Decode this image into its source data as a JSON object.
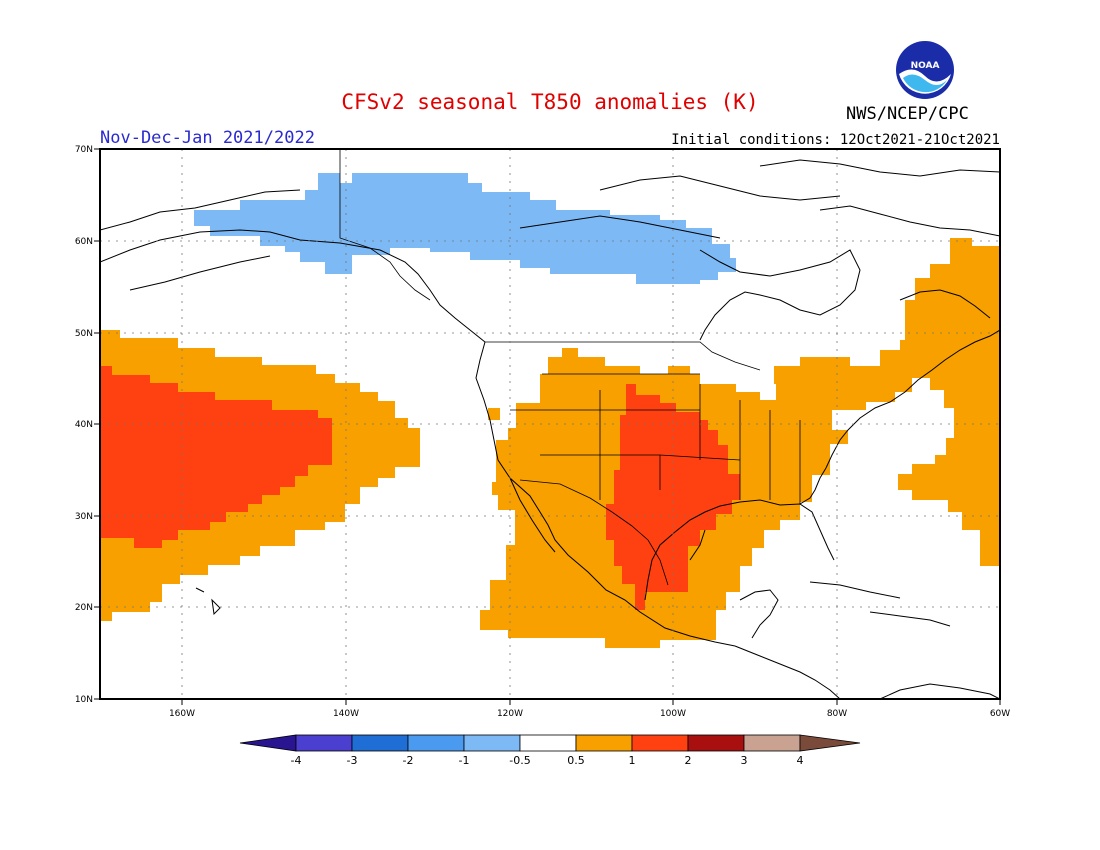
{
  "title": "CFSv2 seasonal T850 anomalies (K)",
  "period": "Nov-Dec-Jan 2021/2022",
  "initial_conditions": "Initial conditions: 12Oct2021-21Oct2021",
  "agency": "NWS/NCEP/CPC",
  "logo_text": "NOAA",
  "map": {
    "lon_range": [
      -172,
      -60
    ],
    "lat_range": [
      10,
      70
    ],
    "lat_ticks": [
      "10N",
      "20N",
      "30N",
      "40N",
      "50N",
      "60N",
      "70N"
    ],
    "lon_ticks": [
      "160W",
      "140W",
      "120W",
      "100W",
      "80W",
      "60W"
    ],
    "grid": true
  },
  "colorbar": {
    "ticks": [
      "-4",
      "-3",
      "-2",
      "-1",
      "-0.5",
      "0.5",
      "1",
      "2",
      "3",
      "4"
    ],
    "colors": [
      "#2a1590",
      "#4a3fcf",
      "#1f6ed6",
      "#4a9bf0",
      "#7db9f5",
      "#ffffff",
      "#f7a000",
      "#ff4010",
      "#a80f0f",
      "#c9a292",
      "#7a4a3a"
    ]
  },
  "anomaly_regions": [
    {
      "name": "Alaska/Northern Canada",
      "class": "-1 to -0.5",
      "color": "#7db9f5"
    },
    {
      "name": "Northeast Pacific",
      "class": "0.5 to 1",
      "color": "#f7a000"
    },
    {
      "name": "Northeast Pacific core",
      "class": "1 to 2",
      "color": "#ff4010"
    },
    {
      "name": "Southwest and central US / Mexico",
      "class": "0.5 to 1",
      "color": "#f7a000"
    },
    {
      "name": "Southern Plains / Texas",
      "class": "1 to 2",
      "color": "#ff4010"
    },
    {
      "name": "Great Lakes",
      "class": "0.5 to 1",
      "color": "#f7a000"
    },
    {
      "name": "Eastern Canada / Northwest Atlantic",
      "class": "0.5 to 1",
      "color": "#f7a000"
    }
  ]
}
